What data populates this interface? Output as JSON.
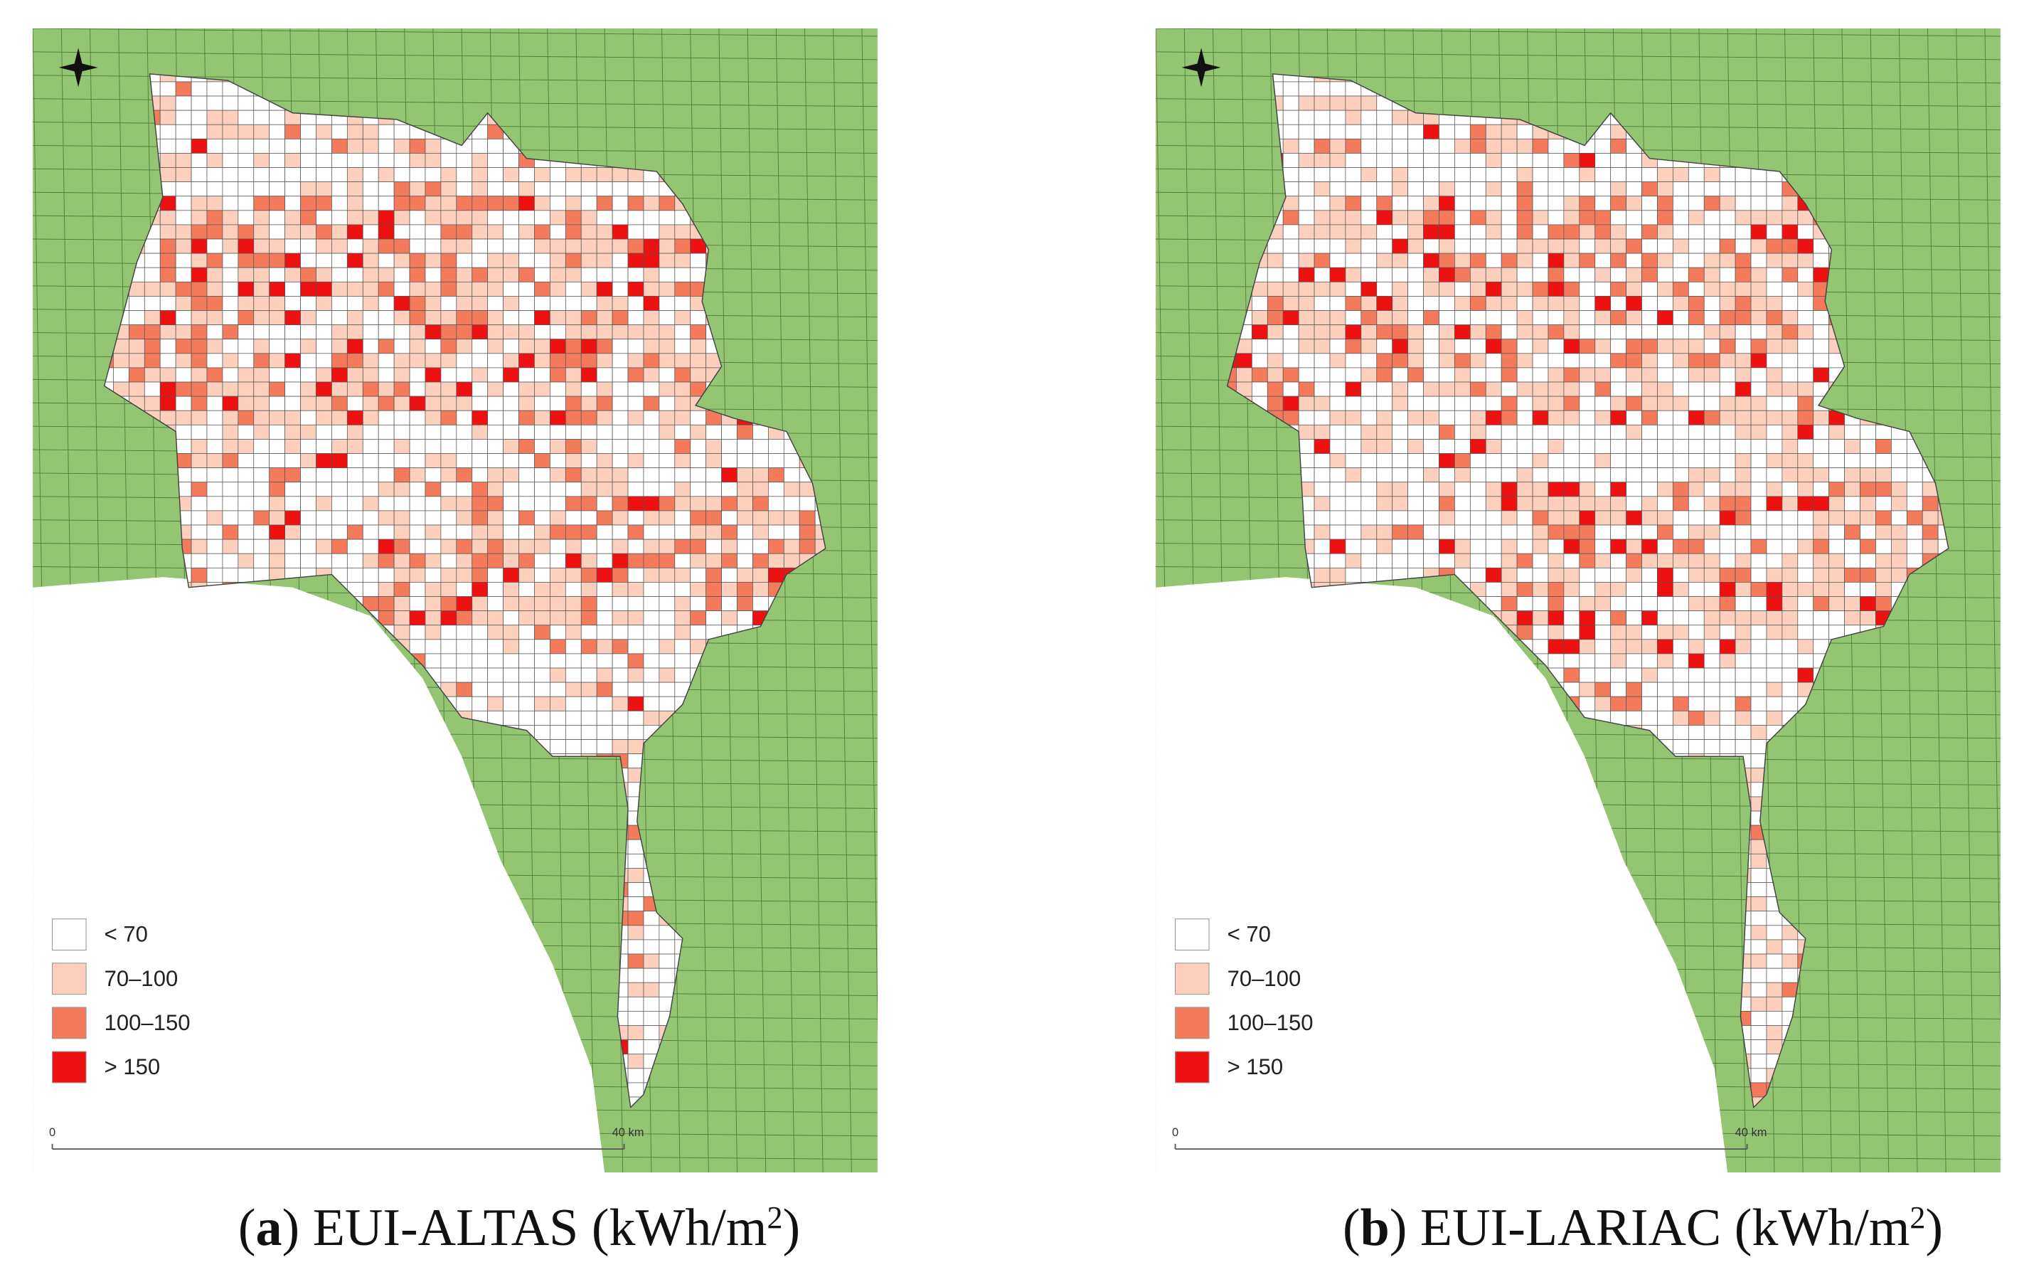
{
  "panels": [
    {
      "caption": [
        "(",
        "a",
        ") EUI-ALTAS (kWh/m",
        "2",
        ")"
      ],
      "legend": [
        {
          "label": "< 70",
          "color": "#ffffff"
        },
        {
          "label": "70–100",
          "color": "#fcd0bd"
        },
        {
          "label": "100–150",
          "color": "#f47a5c"
        },
        {
          "label": "> 150",
          "color": "#ee1111"
        }
      ],
      "scale_bar": {
        "start": "0",
        "end": "40 km"
      }
    },
    {
      "caption": [
        "(",
        "b",
        ") EUI-LARIAC (kWh/m",
        "2",
        ")"
      ],
      "legend": [
        {
          "label": "< 70",
          "color": "#ffffff"
        },
        {
          "label": "70–100",
          "color": "#fcd0bd"
        },
        {
          "label": "100–150",
          "color": "#f47a5c"
        },
        {
          "label": "> 150",
          "color": "#ee1111"
        }
      ],
      "scale_bar": {
        "start": "0",
        "end": "40 km"
      }
    }
  ]
}
